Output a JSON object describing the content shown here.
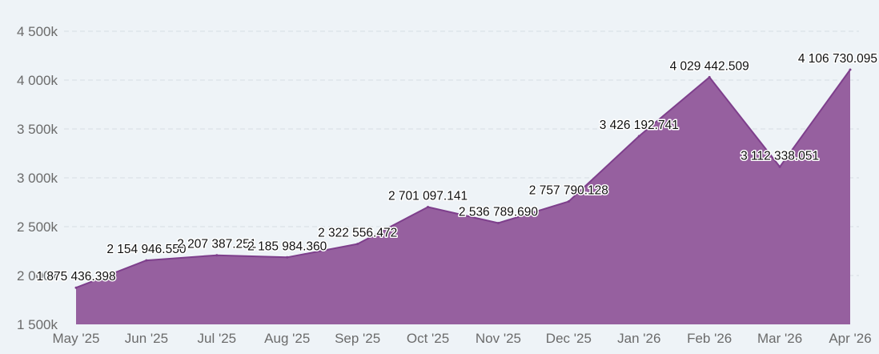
{
  "chart_data": {
    "type": "area",
    "title": "",
    "xlabel": "",
    "ylabel": "",
    "categories": [
      "May '25",
      "Jun '25",
      "Jul '25",
      "Aug '25",
      "Sep '25",
      "Oct '25",
      "Nov '25",
      "Dec '25",
      "Jan '26",
      "Feb '26",
      "Mar '26",
      "Apr '26"
    ],
    "values": [
      1875436.398,
      2154946.55,
      2207387.251,
      2185984.36,
      2322556.472,
      2701097.141,
      2536789.69,
      2757790.128,
      3426192.741,
      4029442.509,
      3112338.051,
      4106730.095
    ],
    "data_labels": [
      "1 875 436.398",
      "2 154 946.550",
      "2 207 387.251",
      "2 185 984.360",
      "2 322 556.472",
      "2 701 097.141",
      "2 536 789.690",
      "2 757 790.128",
      "3 426 192.741",
      "4 029 442.509",
      "3 112 338.051",
      "4 106 730.095"
    ],
    "ylim": [
      1500000,
      4500000
    ],
    "yticks": [
      1500000,
      2000000,
      2500000,
      3000000,
      3500000,
      4000000,
      4500000
    ],
    "ytick_labels": [
      "1 500k",
      "2 000k",
      "2 500k",
      "3 000k",
      "3 500k",
      "4 000k",
      "4 500k"
    ],
    "grid": true,
    "legend": "none"
  },
  "colors": {
    "area_fill": "#96609f",
    "area_line": "#7e3f8c",
    "background": "#eef3f7"
  }
}
